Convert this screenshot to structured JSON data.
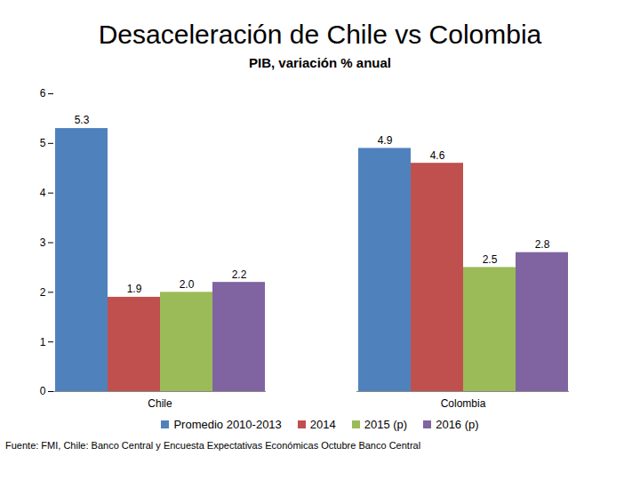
{
  "chart_data": {
    "type": "bar",
    "title": "Desaceleración de Chile vs Colombia",
    "subtitle": "PIB, variación % anual",
    "caption": "Fuente: FMI, Chile: Banco Central y Encuesta Expectativas Económicas Octubre Banco Central",
    "categories": [
      "Chile",
      "Colombia"
    ],
    "series": [
      {
        "name": "Promedio 2010-2013",
        "color": "#4f81bd",
        "values": [
          5.3,
          4.9
        ],
        "value_labels": [
          "5.3",
          "4.9"
        ]
      },
      {
        "name": "2014",
        "color": "#c0504d",
        "values": [
          1.9,
          4.6
        ],
        "value_labels": [
          "1.9",
          "4.6"
        ]
      },
      {
        "name": "2015 (p)",
        "color": "#9bbb59",
        "values": [
          2.0,
          2.5
        ],
        "value_labels": [
          "2.0",
          "2.5"
        ]
      },
      {
        "name": "2016 (p)",
        "color": "#8064a2",
        "values": [
          2.2,
          2.8
        ],
        "value_labels": [
          "2.2",
          "2.8"
        ]
      }
    ],
    "ylim": [
      0,
      6
    ],
    "yticks": [
      0,
      1,
      2,
      3,
      4,
      5,
      6
    ],
    "grid": false,
    "legend": "bottom",
    "data_labels": true
  }
}
